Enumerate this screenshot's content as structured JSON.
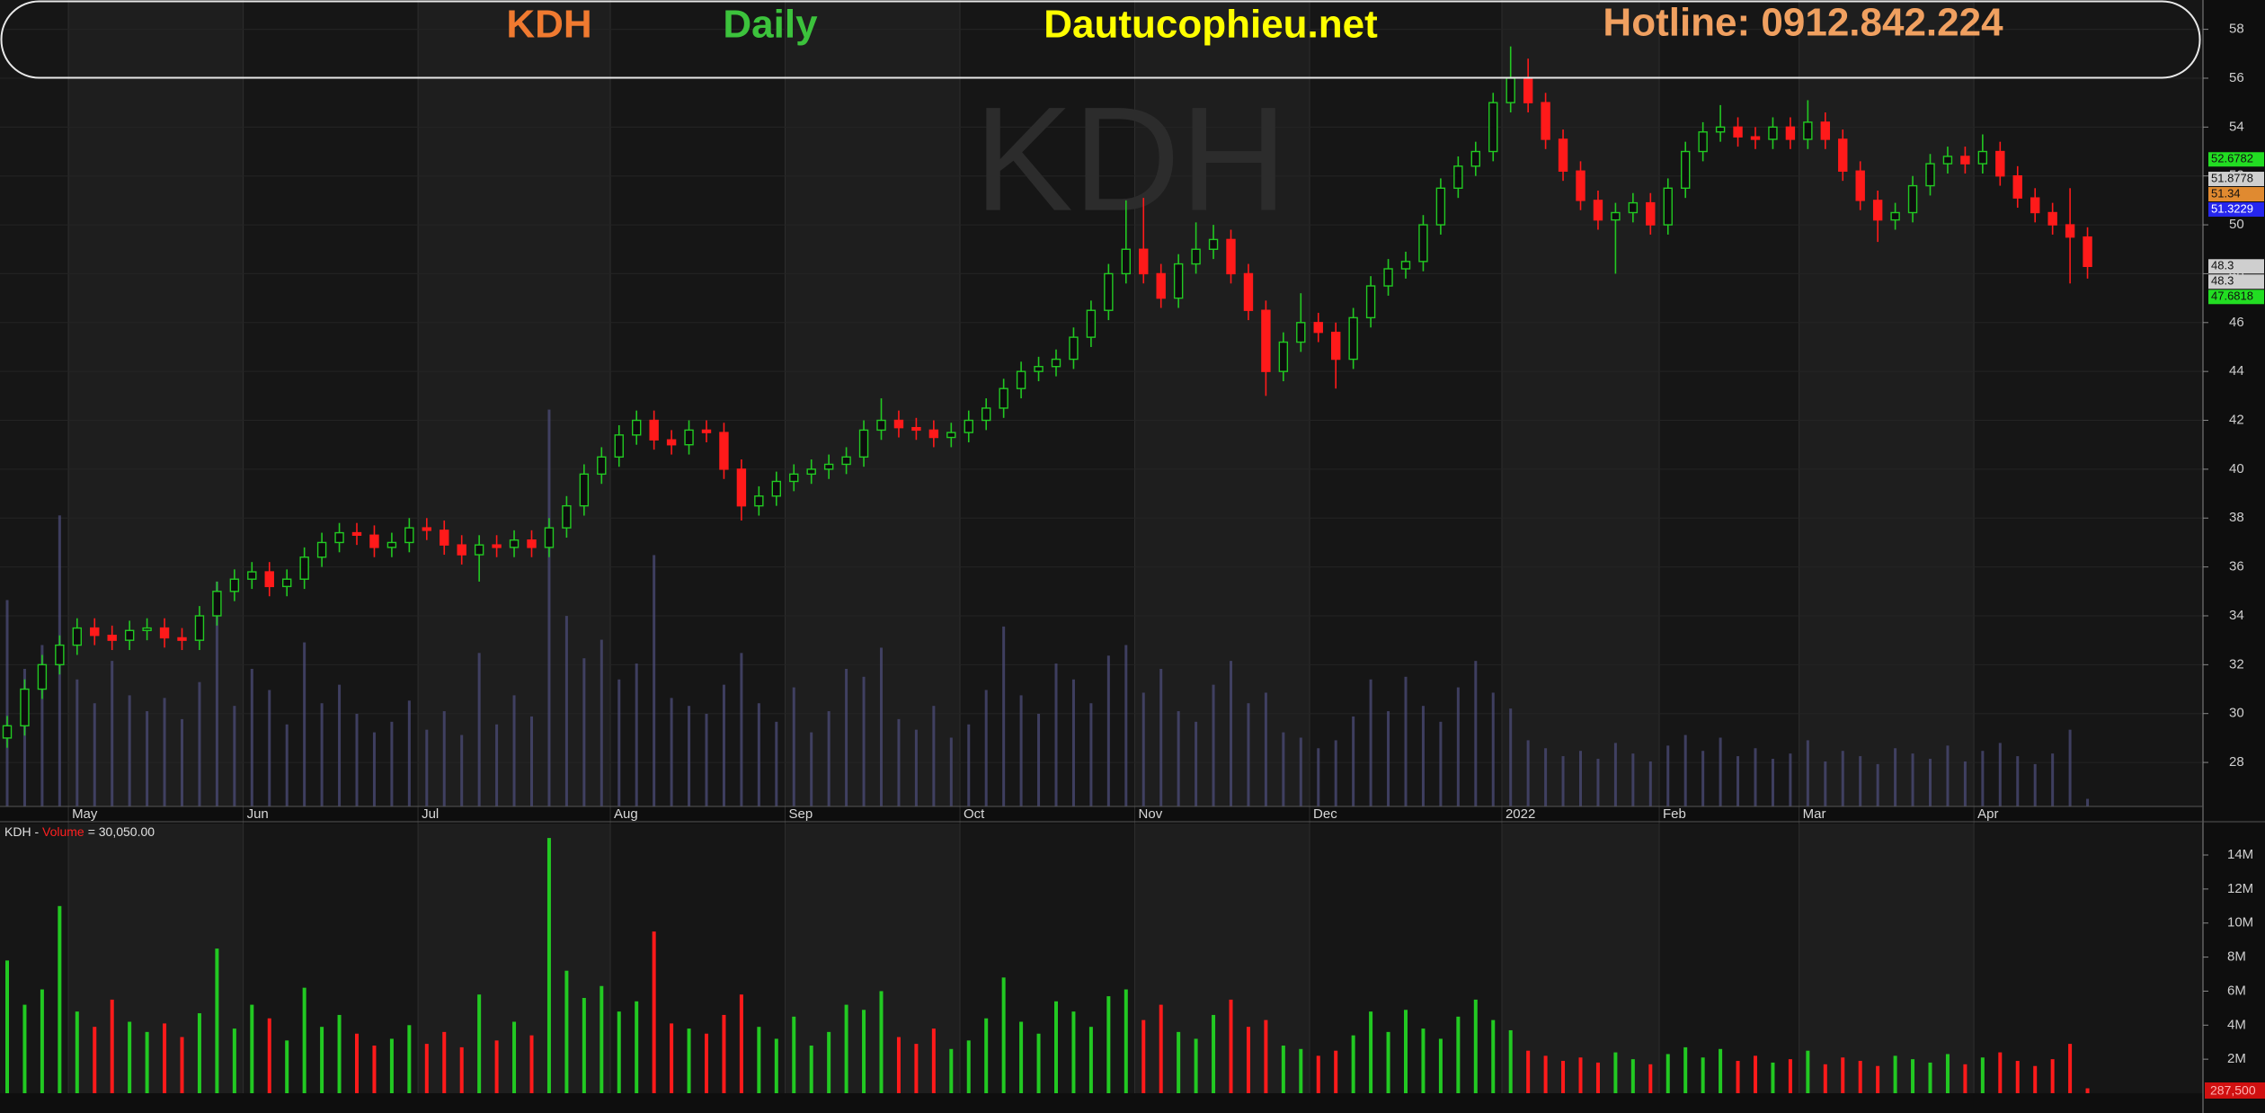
{
  "header": {
    "symbol": "KDH",
    "period": "Daily",
    "site": "Dautucophieu.net",
    "hotline": "Hotline: 0912.842.224"
  },
  "chart_data": [
    {
      "type": "candlestick",
      "watermark": "KDH",
      "categories": [
        null,
        null,
        null,
        null,
        "May",
        null,
        null,
        null,
        null,
        null,
        null,
        null,
        null,
        null,
        "Jun",
        null,
        null,
        null,
        null,
        null,
        null,
        null,
        null,
        null,
        "Jul",
        null,
        null,
        null,
        null,
        null,
        null,
        null,
        null,
        null,
        null,
        "Aug",
        null,
        null,
        null,
        null,
        null,
        null,
        null,
        null,
        null,
        "Sep",
        null,
        null,
        null,
        null,
        null,
        null,
        null,
        null,
        null,
        "Oct",
        null,
        null,
        null,
        null,
        null,
        null,
        null,
        null,
        null,
        "Nov",
        null,
        null,
        null,
        null,
        null,
        null,
        null,
        null,
        null,
        "Dec",
        null,
        null,
        null,
        null,
        null,
        null,
        null,
        null,
        null,
        null,
        "2022",
        null,
        null,
        null,
        null,
        null,
        null,
        null,
        null,
        "Feb",
        null,
        null,
        null,
        null,
        null,
        null,
        null,
        "Mar",
        null,
        null,
        null,
        null,
        null,
        null,
        null,
        null,
        null,
        "Apr",
        null,
        null,
        null,
        null,
        null,
        null
      ],
      "open": [
        29,
        29.5,
        31,
        32,
        32.8,
        33.5,
        33.2,
        33,
        33.4,
        33.5,
        33.1,
        33,
        34,
        35,
        35.5,
        35.8,
        35.2,
        35.5,
        36.4,
        37,
        37.4,
        37.3,
        36.8,
        37,
        37.6,
        37.5,
        36.9,
        36.5,
        36.9,
        36.8,
        37.1,
        36.8,
        37.6,
        38.5,
        39.8,
        40.5,
        41.4,
        42,
        41.2,
        41,
        41.6,
        41.5,
        40,
        38.5,
        38.9,
        39.5,
        39.8,
        40,
        40.2,
        40.5,
        41.6,
        42,
        41.7,
        41.6,
        41.3,
        41.5,
        42,
        42.5,
        43.3,
        44,
        44.2,
        44.5,
        45.4,
        46.5,
        48,
        49,
        48,
        47,
        48.4,
        49,
        49.4,
        48,
        46.5,
        44,
        45.2,
        46,
        45.6,
        44.5,
        46.2,
        47.5,
        48.2,
        48.5,
        50,
        51.5,
        52.4,
        53,
        55,
        56,
        55,
        53.5,
        52.2,
        51,
        50.2,
        50.5,
        50.9,
        50,
        51.5,
        53,
        53.8,
        54,
        53.6,
        53.5,
        54,
        53.5,
        54.2,
        53.5,
        52.2,
        51,
        50.2,
        50.5,
        51.6,
        52.5,
        52.8,
        52.5,
        53,
        52,
        51.1,
        50.5,
        50,
        49.5
      ],
      "high": [
        29.9,
        31.4,
        32.4,
        33.2,
        33.9,
        33.9,
        33.6,
        33.8,
        33.9,
        33.9,
        33.5,
        34.4,
        35.4,
        35.9,
        36.2,
        36.2,
        35.9,
        36.8,
        37.4,
        37.8,
        37.8,
        37.7,
        37.4,
        38,
        38,
        37.9,
        37.3,
        37.3,
        37.3,
        37.5,
        37.5,
        38,
        38.9,
        40.2,
        40.9,
        41.8,
        42.4,
        42.4,
        41.6,
        42,
        42,
        41.9,
        40.4,
        39.3,
        39.9,
        40.2,
        40.4,
        40.6,
        40.9,
        42,
        42.9,
        42.4,
        42.1,
        42,
        41.9,
        42.4,
        42.9,
        43.7,
        44.4,
        44.6,
        44.9,
        45.8,
        46.9,
        48.4,
        51,
        51.1,
        48.4,
        48.8,
        50.1,
        50,
        49.8,
        48.4,
        46.9,
        45.6,
        47.2,
        46.4,
        46,
        46.6,
        47.9,
        48.6,
        48.9,
        50.4,
        51.9,
        52.8,
        53.4,
        55.4,
        57.3,
        56.8,
        55.4,
        53.9,
        52.6,
        51.4,
        50.9,
        51.3,
        51.3,
        51.9,
        53.4,
        54.2,
        54.9,
        54.4,
        54,
        54.4,
        54.4,
        55.1,
        54.6,
        53.9,
        52.6,
        51.4,
        50.9,
        52,
        52.9,
        53.2,
        53.2,
        53.7,
        53.4,
        52.4,
        51.5,
        50.9,
        51.5,
        49.9
      ],
      "low": [
        28.6,
        29.1,
        30.6,
        31.6,
        32.4,
        32.8,
        32.6,
        32.6,
        33,
        32.7,
        32.6,
        32.6,
        33.6,
        34.6,
        35.1,
        34.8,
        34.8,
        35.1,
        36,
        36.6,
        36.9,
        36.4,
        36.4,
        36.6,
        37.1,
        36.5,
        36.1,
        35.4,
        36.4,
        36.4,
        36.4,
        36.4,
        37.2,
        38.1,
        39.4,
        40.1,
        41,
        40.8,
        40.6,
        40.6,
        41.1,
        39.6,
        37.9,
        38.1,
        38.5,
        39.1,
        39.4,
        39.6,
        39.8,
        40.1,
        41.2,
        41.3,
        41.2,
        40.9,
        40.9,
        41.1,
        41.6,
        42.1,
        42.9,
        43.6,
        43.8,
        44.1,
        45,
        46.1,
        47.6,
        47.6,
        46.6,
        46.6,
        48,
        48.6,
        47.6,
        46.1,
        43,
        43.6,
        44.8,
        45.2,
        43.3,
        44.1,
        45.8,
        47.1,
        47.8,
        48.1,
        49.6,
        51.1,
        52,
        52.6,
        54.6,
        54.6,
        53.1,
        51.8,
        50.6,
        49.8,
        48,
        50.1,
        49.6,
        49.6,
        51.1,
        52.6,
        53.4,
        53.2,
        53.1,
        53.1,
        53.1,
        53.1,
        53.1,
        51.8,
        50.6,
        49.3,
        49.8,
        50.1,
        51.2,
        52.1,
        52.1,
        52.1,
        51.6,
        50.7,
        50.1,
        49.6,
        47.6,
        47.8
      ],
      "close": [
        29.5,
        31,
        32,
        32.8,
        33.5,
        33.2,
        33,
        33.4,
        33.5,
        33.1,
        33,
        34,
        35,
        35.5,
        35.8,
        35.2,
        35.5,
        36.4,
        37,
        37.4,
        37.3,
        36.8,
        37,
        37.6,
        37.5,
        36.9,
        36.5,
        36.9,
        36.8,
        37.1,
        36.8,
        37.6,
        38.5,
        39.8,
        40.5,
        41.4,
        42,
        41.2,
        41,
        41.6,
        41.5,
        40,
        38.5,
        38.9,
        39.5,
        39.8,
        40,
        40.2,
        40.5,
        41.6,
        42,
        41.7,
        41.6,
        41.3,
        41.5,
        42,
        42.5,
        43.3,
        44,
        44.2,
        44.5,
        45.4,
        46.5,
        48,
        49,
        48,
        47,
        48.4,
        49,
        49.4,
        48,
        46.5,
        44,
        45.2,
        46,
        45.6,
        44.5,
        46.2,
        47.5,
        48.2,
        48.5,
        50,
        51.5,
        52.4,
        53,
        55,
        56,
        55,
        53.5,
        52.2,
        51,
        50.2,
        50.5,
        50.9,
        50,
        51.5,
        53,
        53.8,
        54,
        53.6,
        53.5,
        54,
        53.5,
        54.2,
        53.5,
        52.2,
        51,
        50.2,
        50.5,
        51.6,
        52.5,
        52.8,
        52.5,
        53,
        52,
        51.1,
        50.5,
        50,
        49.5,
        48.3
      ],
      "up_color": "#22c922",
      "down_color": "#ff1a1a",
      "ylim": [
        26.2,
        59.2
      ],
      "yticks": [
        28,
        30,
        32,
        34,
        36,
        38,
        40,
        42,
        44,
        46,
        48,
        50,
        52,
        54,
        56,
        58
      ],
      "price_markers": [
        {
          "value": 52.6782,
          "color": "#22dd22"
        },
        {
          "value": 51.8778,
          "color": "#cfcfcf"
        },
        {
          "value": 51.34,
          "color": "#e08a30"
        },
        {
          "value": 51.3229,
          "color": "#2626ee"
        },
        {
          "value": 48.3,
          "color": "#cfcfcf"
        },
        {
          "value": 48.3,
          "color": "#cfcfcf"
        },
        {
          "value": 47.6818,
          "color": "#22dd22"
        }
      ]
    },
    {
      "type": "bar",
      "title": "KDH - ",
      "indicator": "Volume",
      "reading": "= 30,050.00",
      "values": [
        7800000,
        5200000,
        6100000,
        11000000,
        4800000,
        3900000,
        5500000,
        4200000,
        3600000,
        4100000,
        3300000,
        4700000,
        8500000,
        3800000,
        5200000,
        4400000,
        3100000,
        6200000,
        3900000,
        4600000,
        3500000,
        2800000,
        3200000,
        4000000,
        2900000,
        3600000,
        2700000,
        5800000,
        3100000,
        4200000,
        3400000,
        15000000,
        7200000,
        5600000,
        6300000,
        4800000,
        5400000,
        9500000,
        4100000,
        3800000,
        3500000,
        4600000,
        5800000,
        3900000,
        3200000,
        4500000,
        2800000,
        3600000,
        5200000,
        4900000,
        6000000,
        3300000,
        2900000,
        3800000,
        2600000,
        3100000,
        4400000,
        6800000,
        4200000,
        3500000,
        5400000,
        4800000,
        3900000,
        5700000,
        6100000,
        4300000,
        5200000,
        3600000,
        3200000,
        4600000,
        5500000,
        3900000,
        4300000,
        2800000,
        2600000,
        2200000,
        2500000,
        3400000,
        4800000,
        3600000,
        4900000,
        3800000,
        3200000,
        4500000,
        5500000,
        4300000,
        3700000,
        2500000,
        2200000,
        1900000,
        2100000,
        1800000,
        2400000,
        2000000,
        1700000,
        2300000,
        2700000,
        2100000,
        2600000,
        1900000,
        2200000,
        1800000,
        2000000,
        2500000,
        1700000,
        2100000,
        1900000,
        1600000,
        2200000,
        2000000,
        1800000,
        2300000,
        1700000,
        2100000,
        2400000,
        1900000,
        1600000,
        2000000,
        2900000,
        287500
      ],
      "value_labels": [
        null,
        null,
        null,
        null,
        null,
        null,
        null,
        null,
        null,
        null,
        null,
        null,
        null,
        null,
        null,
        null,
        null,
        null,
        null,
        null,
        null,
        null,
        null,
        null,
        null,
        null,
        null,
        null,
        null,
        null,
        null,
        null,
        null,
        null,
        null,
        null,
        null,
        null,
        null,
        null,
        null,
        null,
        null,
        null,
        null,
        null,
        null,
        null,
        null,
        null,
        null,
        null,
        null,
        null,
        null,
        null,
        null,
        null,
        null,
        null,
        null,
        null,
        null,
        null,
        null,
        null,
        null,
        null,
        null,
        null,
        null,
        null,
        null,
        null,
        null,
        null,
        null,
        null,
        null,
        null,
        null,
        null,
        null,
        null,
        null,
        null,
        null,
        null,
        null,
        null,
        null,
        null,
        null,
        null,
        null,
        null,
        null,
        null,
        null,
        null,
        null,
        null,
        null,
        null,
        null,
        null,
        null,
        null,
        null,
        null,
        null,
        null,
        null,
        null,
        null,
        null,
        null,
        null,
        null,
        "287,500"
      ],
      "ylim": [
        0,
        15850000
      ],
      "yticks": [
        {
          "value": 2000000,
          "label": "2M"
        },
        {
          "value": 4000000,
          "label": "4M"
        },
        {
          "value": 6000000,
          "label": "6M"
        },
        {
          "value": 8000000,
          "label": "8M"
        },
        {
          "value": 10000000,
          "label": "10M"
        },
        {
          "value": 12000000,
          "label": "12M"
        },
        {
          "value": 14000000,
          "label": "14M"
        }
      ]
    }
  ]
}
